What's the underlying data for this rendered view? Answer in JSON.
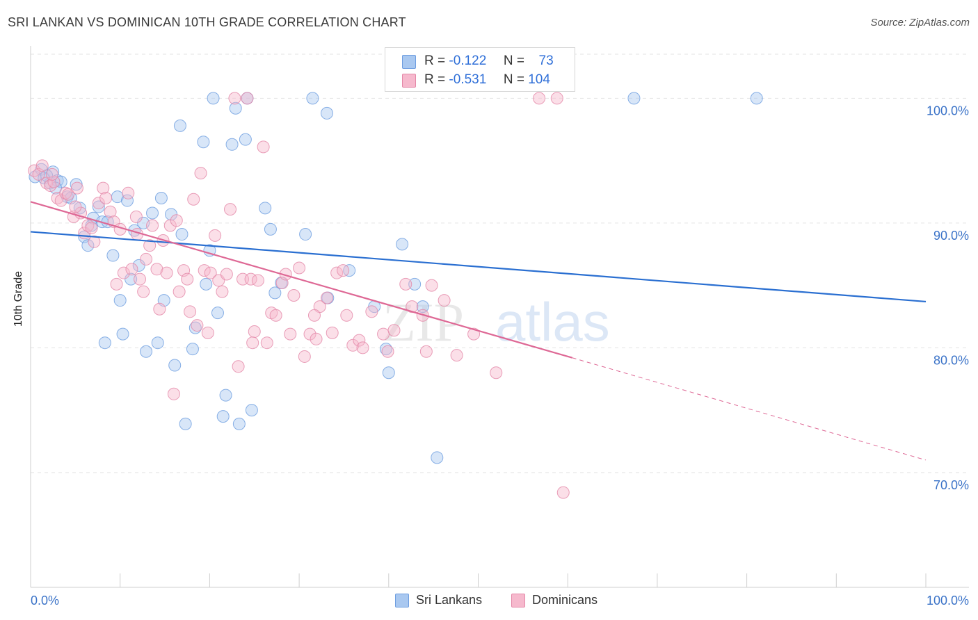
{
  "title": "SRI LANKAN VS DOMINICAN 10TH GRADE CORRELATION CHART",
  "source": "Source: ZipAtlas.com",
  "watermark": {
    "part1": "ZIP",
    "part2": "atlas"
  },
  "legend": {
    "r_label": "R =",
    "n_label": "N =",
    "series": [
      {
        "name": "Sri Lankans",
        "r": "-0.122",
        "n": "73",
        "color": "#a9c8f0",
        "edge": "#6d9de0",
        "line": "#2a6fd1"
      },
      {
        "name": "Dominicans",
        "r": "-0.531",
        "n": "104",
        "color": "#f6b9cd",
        "edge": "#e487a7",
        "line": "#de6895"
      }
    ]
  },
  "chart_data": {
    "type": "scatter",
    "title": "SRI LANKAN VS DOMINICAN 10TH GRADE CORRELATION CHART",
    "xlabel": "",
    "ylabel": "10th Grade",
    "xlim": [
      0,
      100
    ],
    "ylim": [
      60.8,
      104.2
    ],
    "x_tick_labels": [
      "0.0%",
      "100.0%"
    ],
    "y_ticks": [
      {
        "value": 100,
        "label": "100.0%"
      },
      {
        "value": 90,
        "label": "90.0%"
      },
      {
        "value": 80,
        "label": "80.0%"
      },
      {
        "value": 70,
        "label": "70.0%"
      }
    ],
    "grid": true,
    "legend_position": "top-center",
    "series": [
      {
        "name": "Sri Lankans",
        "trend": {
          "x0": 0,
          "y0": 89.3,
          "x1": 100,
          "y1": 83.7
        },
        "points": [
          [
            0.5,
            93.7
          ],
          [
            1.2,
            94.3
          ],
          [
            1.5,
            93.6
          ],
          [
            2.2,
            93.2
          ],
          [
            2.5,
            94.1
          ],
          [
            3.0,
            93.4
          ],
          [
            3.4,
            93.3
          ],
          [
            4.1,
            92.1
          ],
          [
            4.5,
            92.0
          ],
          [
            5.1,
            93.1
          ],
          [
            5.5,
            91.2
          ],
          [
            6.0,
            88.9
          ],
          [
            6.4,
            88.2
          ],
          [
            7.0,
            90.4
          ],
          [
            7.6,
            91.3
          ],
          [
            8.0,
            90.1
          ],
          [
            8.6,
            90.1
          ],
          [
            9.2,
            87.4
          ],
          [
            9.7,
            92.1
          ],
          [
            10.0,
            83.8
          ],
          [
            10.3,
            81.1
          ],
          [
            10.8,
            91.8
          ],
          [
            11.2,
            85.5
          ],
          [
            11.6,
            89.4
          ],
          [
            12.1,
            86.6
          ],
          [
            12.6,
            90.0
          ],
          [
            12.9,
            79.7
          ],
          [
            13.6,
            90.8
          ],
          [
            14.2,
            80.4
          ],
          [
            14.6,
            92.0
          ],
          [
            14.9,
            83.8
          ],
          [
            15.7,
            90.7
          ],
          [
            16.1,
            78.6
          ],
          [
            16.7,
            97.8
          ],
          [
            16.9,
            89.1
          ],
          [
            17.3,
            73.9
          ],
          [
            18.1,
            79.9
          ],
          [
            18.4,
            81.6
          ],
          [
            19.3,
            96.5
          ],
          [
            19.6,
            85.1
          ],
          [
            20.0,
            87.8
          ],
          [
            20.4,
            100.0
          ],
          [
            20.9,
            82.8
          ],
          [
            21.5,
            74.5
          ],
          [
            21.8,
            76.2
          ],
          [
            22.5,
            96.3
          ],
          [
            22.9,
            99.2
          ],
          [
            23.3,
            73.9
          ],
          [
            24.0,
            96.7
          ],
          [
            24.7,
            75.0
          ],
          [
            26.2,
            91.2
          ],
          [
            26.8,
            89.5
          ],
          [
            27.3,
            84.4
          ],
          [
            28.0,
            85.2
          ],
          [
            30.7,
            89.1
          ],
          [
            31.5,
            100.0
          ],
          [
            33.1,
            98.8
          ],
          [
            33.2,
            84.0
          ],
          [
            35.6,
            86.2
          ],
          [
            38.4,
            83.3
          ],
          [
            39.7,
            79.9
          ],
          [
            40.0,
            78.0
          ],
          [
            41.5,
            88.3
          ],
          [
            42.9,
            85.1
          ],
          [
            43.8,
            83.3
          ],
          [
            45.4,
            71.2
          ],
          [
            67.4,
            100.0
          ],
          [
            81.1,
            100.0
          ],
          [
            1.8,
            93.8
          ],
          [
            2.8,
            92.8
          ],
          [
            6.8,
            89.8
          ],
          [
            8.3,
            80.4
          ],
          [
            24.2,
            100.0
          ]
        ]
      },
      {
        "name": "Dominicans",
        "trend": {
          "x0": 0,
          "y0": 91.7,
          "x1": 60.5,
          "y1": 79.2,
          "dashed_to": {
            "x": 100,
            "y": 71.0
          }
        },
        "points": [
          [
            0.4,
            94.2
          ],
          [
            0.9,
            93.9
          ],
          [
            1.3,
            94.6
          ],
          [
            1.8,
            93.2
          ],
          [
            2.2,
            93.0
          ],
          [
            2.6,
            93.3
          ],
          [
            3.0,
            92.0
          ],
          [
            3.4,
            91.8
          ],
          [
            3.9,
            92.4
          ],
          [
            4.2,
            92.3
          ],
          [
            4.8,
            90.5
          ],
          [
            5.2,
            92.8
          ],
          [
            5.6,
            90.8
          ],
          [
            6.0,
            89.2
          ],
          [
            6.4,
            89.8
          ],
          [
            6.8,
            89.6
          ],
          [
            7.1,
            88.5
          ],
          [
            7.6,
            91.6
          ],
          [
            8.1,
            92.8
          ],
          [
            8.4,
            92.0
          ],
          [
            8.9,
            90.9
          ],
          [
            9.3,
            90.1
          ],
          [
            9.6,
            85.1
          ],
          [
            10.0,
            89.5
          ],
          [
            10.4,
            86.0
          ],
          [
            10.9,
            92.4
          ],
          [
            11.3,
            86.3
          ],
          [
            11.8,
            90.5
          ],
          [
            12.2,
            85.5
          ],
          [
            12.6,
            84.5
          ],
          [
            12.9,
            87.1
          ],
          [
            13.3,
            88.2
          ],
          [
            13.6,
            89.8
          ],
          [
            14.1,
            86.3
          ],
          [
            14.4,
            83.1
          ],
          [
            14.8,
            88.6
          ],
          [
            15.2,
            86.0
          ],
          [
            15.6,
            89.8
          ],
          [
            16.0,
            76.3
          ],
          [
            16.3,
            90.2
          ],
          [
            16.6,
            84.5
          ],
          [
            17.1,
            86.2
          ],
          [
            17.5,
            85.5
          ],
          [
            17.8,
            82.9
          ],
          [
            18.2,
            91.9
          ],
          [
            18.6,
            81.8
          ],
          [
            19.0,
            94.0
          ],
          [
            19.4,
            86.2
          ],
          [
            19.8,
            81.2
          ],
          [
            20.1,
            86.0
          ],
          [
            20.6,
            89.0
          ],
          [
            21.0,
            85.4
          ],
          [
            21.4,
            84.5
          ],
          [
            21.9,
            85.9
          ],
          [
            22.3,
            91.1
          ],
          [
            22.8,
            100.0
          ],
          [
            23.2,
            78.5
          ],
          [
            23.7,
            85.5
          ],
          [
            24.2,
            100.0
          ],
          [
            24.6,
            85.5
          ],
          [
            25.0,
            81.3
          ],
          [
            25.4,
            85.4
          ],
          [
            26.0,
            96.1
          ],
          [
            26.4,
            80.4
          ],
          [
            26.9,
            82.8
          ],
          [
            27.4,
            82.6
          ],
          [
            28.1,
            85.2
          ],
          [
            28.5,
            85.9
          ],
          [
            29.0,
            81.1
          ],
          [
            29.4,
            84.2
          ],
          [
            30.0,
            86.4
          ],
          [
            30.6,
            79.3
          ],
          [
            31.2,
            81.1
          ],
          [
            31.9,
            80.7
          ],
          [
            32.3,
            83.3
          ],
          [
            33.1,
            84.0
          ],
          [
            33.7,
            81.2
          ],
          [
            34.2,
            86.0
          ],
          [
            34.9,
            86.2
          ],
          [
            35.3,
            82.6
          ],
          [
            36.0,
            80.2
          ],
          [
            36.7,
            80.6
          ],
          [
            37.1,
            80.0
          ],
          [
            38.1,
            82.9
          ],
          [
            39.4,
            81.1
          ],
          [
            39.9,
            79.7
          ],
          [
            40.6,
            81.4
          ],
          [
            41.9,
            85.1
          ],
          [
            42.6,
            83.3
          ],
          [
            43.8,
            82.6
          ],
          [
            44.8,
            85.0
          ],
          [
            46.2,
            83.8
          ],
          [
            47.6,
            79.4
          ],
          [
            49.5,
            81.1
          ],
          [
            52.0,
            78.0
          ],
          [
            56.8,
            100.0
          ],
          [
            58.8,
            100.0
          ],
          [
            59.5,
            68.4
          ],
          [
            2.4,
            93.9
          ],
          [
            5.0,
            91.3
          ],
          [
            11.9,
            89.1
          ],
          [
            24.8,
            80.4
          ],
          [
            31.7,
            82.6
          ],
          [
            44.2,
            79.7
          ]
        ]
      }
    ]
  }
}
